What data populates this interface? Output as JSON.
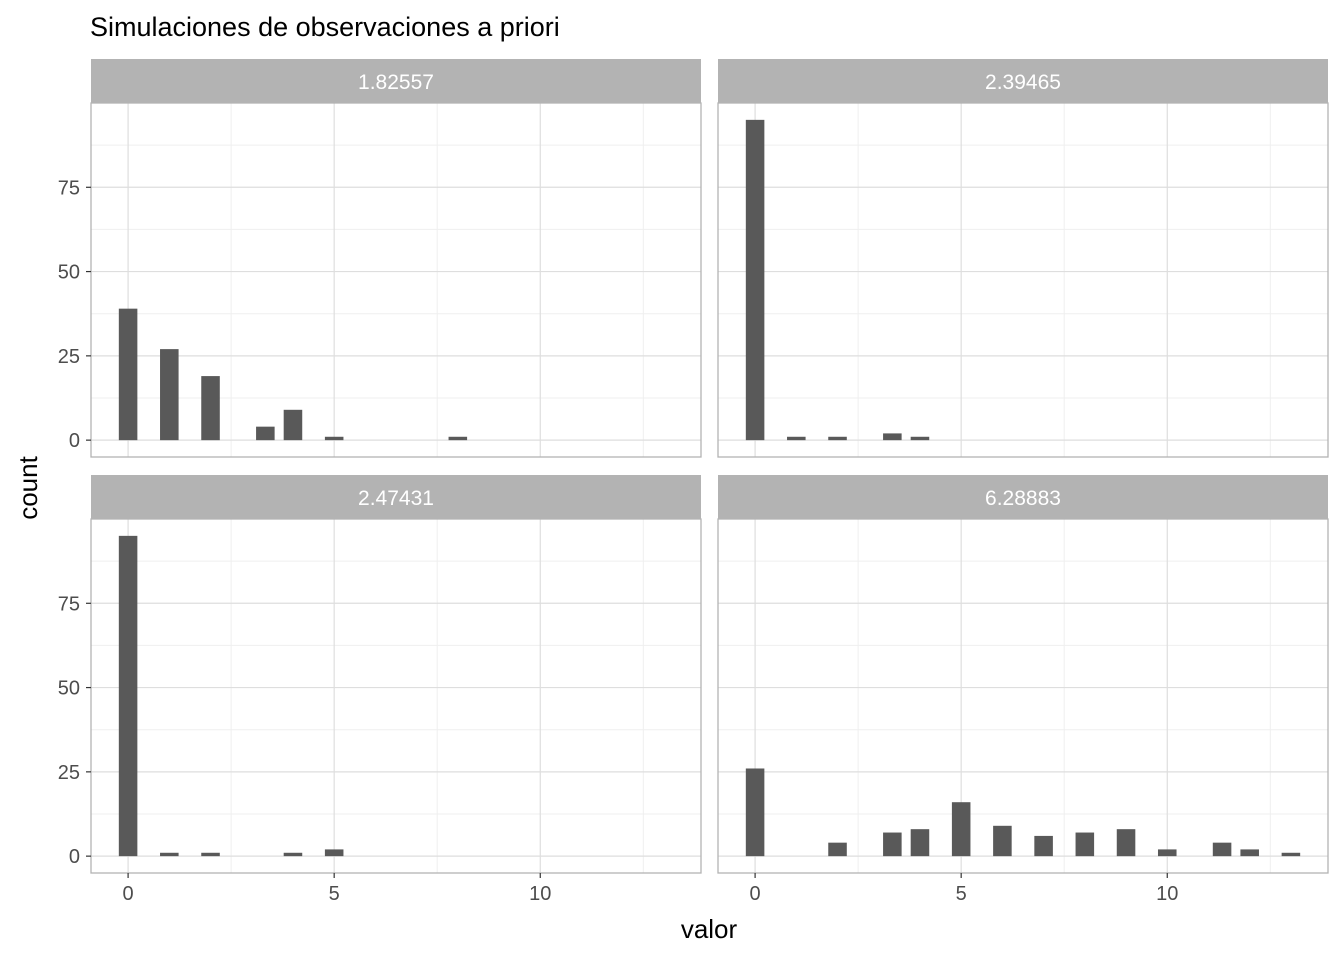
{
  "chart_data": {
    "type": "bar",
    "title": "Simulaciones de observaciones a priori",
    "xlabel": "valor",
    "ylabel": "count",
    "xlim": [
      -0.9,
      13.9
    ],
    "ylim": [
      -5,
      100
    ],
    "x_ticks": [
      0,
      5,
      10
    ],
    "y_ticks": [
      0,
      25,
      50,
      75
    ],
    "bar_width": 0.45,
    "grid": true,
    "colors": {
      "bar": "#595959",
      "strip": "#b3b3b3",
      "grid_major": "#dedede",
      "grid_minor": "#efefef",
      "border": "#b3b3b3"
    },
    "panels": [
      {
        "label": "1.82557",
        "x": [
          0,
          1,
          2,
          3.33,
          4,
          5,
          8
        ],
        "values": [
          39,
          27,
          19,
          4,
          9,
          1,
          1
        ]
      },
      {
        "label": "2.39465",
        "x": [
          0,
          1,
          2,
          3.33,
          4
        ],
        "values": [
          95,
          1,
          1,
          2,
          1
        ]
      },
      {
        "label": "2.47431",
        "x": [
          0,
          1,
          2,
          4,
          5
        ],
        "values": [
          95,
          1,
          1,
          1,
          2
        ]
      },
      {
        "label": "6.28883",
        "x": [
          0,
          2,
          3.33,
          4,
          5,
          6,
          7,
          8,
          9,
          10,
          11.33,
          12,
          13
        ],
        "values": [
          26,
          4,
          7,
          8,
          16,
          9,
          6,
          7,
          8,
          2,
          4,
          2,
          1
        ]
      }
    ]
  }
}
